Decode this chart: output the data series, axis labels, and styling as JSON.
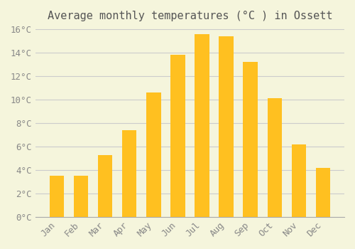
{
  "title": "Average monthly temperatures (°C ) in Ossett",
  "months": [
    "Jan",
    "Feb",
    "Mar",
    "Apr",
    "May",
    "Jun",
    "Jul",
    "Aug",
    "Sep",
    "Oct",
    "Nov",
    "Dec"
  ],
  "values": [
    3.5,
    3.5,
    5.3,
    7.4,
    10.6,
    13.8,
    15.6,
    15.4,
    13.2,
    10.1,
    6.2,
    4.2
  ],
  "bar_color_top": "#FFC020",
  "bar_color_bottom": "#FFB000",
  "ylim": [
    0,
    16
  ],
  "yticks": [
    0,
    2,
    4,
    6,
    8,
    10,
    12,
    14,
    16
  ],
  "ytick_labels": [
    "0°C",
    "2°C",
    "4°C",
    "6°C",
    "8°C",
    "10°C",
    "12°C",
    "14°C",
    "16°C"
  ],
  "background_color": "#F5F5DC",
  "grid_color": "#CCCCCC",
  "title_fontsize": 11,
  "tick_fontsize": 9,
  "bar_width": 0.6
}
